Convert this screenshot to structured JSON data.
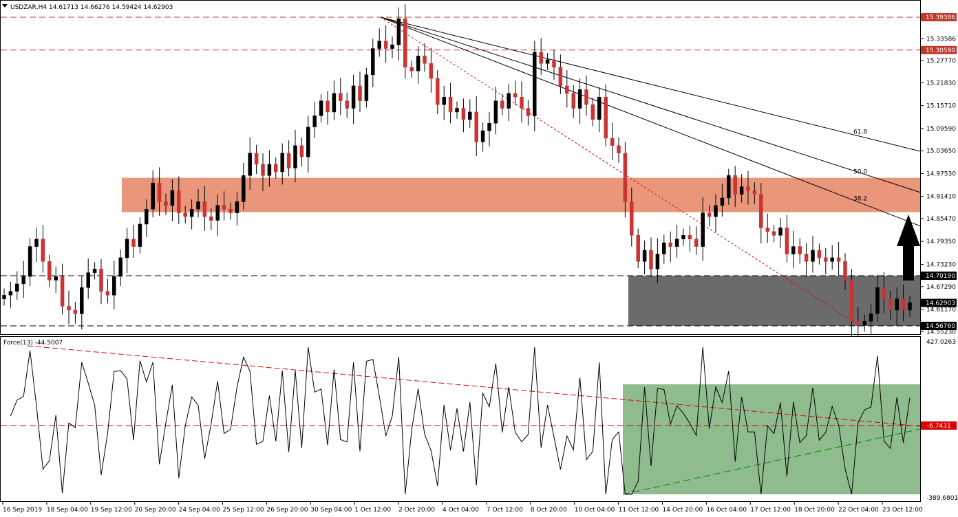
{
  "chart_title": "USDZAR,H4  14.61713 14.66276 14.59424 14.62903",
  "indicator_label": "Force(13) -44.5007",
  "colors": {
    "bull": "#000000",
    "bear": "#cc3333",
    "resistance_zone": "#e9967a",
    "support_zone": "#6b6b6b",
    "indicator_zone": "#8fbc8f",
    "red_line": "#dd0000",
    "green_line": "#008800"
  },
  "chart_data": [
    {
      "type": "candlestick",
      "symbol": "USDZAR",
      "timeframe": "H4",
      "ohlc_header": {
        "open": 14.61713,
        "high": 14.66276,
        "low": 14.59424,
        "close": 14.62903
      },
      "ylim": [
        14.5523,
        15.42
      ],
      "y_ticks": [
        15.33586,
        15.2777,
        15.2183,
        15.1571,
        15.0959,
        15.0365,
        14.9753,
        14.9141,
        14.8547,
        14.7935,
        14.7323,
        14.6729,
        14.6117,
        14.5523
      ],
      "price_tags": [
        {
          "value": 15.39386,
          "label": "15.39386",
          "style": "dashed-red",
          "color": "#c0392b"
        },
        {
          "value": 15.3059,
          "label": "15.30590",
          "style": "dashed-red",
          "color": "#c0392b"
        },
        {
          "value": 14.7019,
          "label": "14.70190",
          "style": "dashed-black",
          "color": "#000000"
        },
        {
          "value": 14.62903,
          "label": "14.62903",
          "style": "current",
          "color": "#000000"
        },
        {
          "value": 14.5676,
          "label": "14.56760",
          "style": "dashed-black",
          "color": "#000000"
        }
      ],
      "x_ticks": [
        "16 Sep 2019",
        "18 Sep 04:00",
        "19 Sep 12:00",
        "20 Sep 20:00",
        "24 Sep 04:00",
        "25 Sep 12:00",
        "26 Sep 20:00",
        "30 Sep 04:00",
        "1 Oct 12:00",
        "2 Oct 20:00",
        "4 Oct 04:00",
        "7 Oct 12:00",
        "8 Oct 20:00",
        "10 Oct 04:00",
        "11 Oct 12:00",
        "14 Oct 20:00",
        "16 Oct 04:00",
        "17 Oct 12:00",
        "18 Oct 20:00",
        "22 Oct 04:00",
        "23 Oct 12:00"
      ],
      "closes": [
        14.65,
        14.66,
        14.68,
        14.7,
        14.78,
        14.8,
        14.74,
        14.69,
        14.7,
        14.62,
        14.61,
        14.6,
        14.67,
        14.71,
        14.72,
        14.66,
        14.65,
        14.7,
        14.75,
        14.8,
        14.78,
        14.84,
        14.88,
        14.95,
        14.9,
        14.89,
        14.93,
        14.87,
        14.86,
        14.88,
        14.9,
        14.86,
        14.85,
        14.89,
        14.88,
        14.87,
        14.9,
        14.97,
        15.03,
        15.0,
        14.97,
        15.0,
        14.98,
        15.03,
        14.99,
        15.05,
        15.02,
        15.1,
        15.13,
        15.17,
        15.14,
        15.19,
        15.17,
        15.15,
        15.21,
        15.17,
        15.24,
        15.31,
        15.33,
        15.31,
        15.32,
        15.39,
        15.26,
        15.25,
        15.29,
        15.27,
        15.23,
        15.16,
        15.18,
        15.14,
        15.15,
        15.12,
        15.14,
        15.06,
        15.09,
        15.11,
        15.17,
        15.15,
        15.19,
        15.18,
        15.15,
        15.13,
        15.3,
        15.27,
        15.28,
        15.26,
        15.21,
        15.19,
        15.15,
        15.2,
        15.16,
        15.12,
        15.18,
        15.07,
        15.05,
        15.03,
        14.9,
        14.81,
        14.74,
        14.77,
        14.72,
        14.76,
        14.79,
        14.78,
        14.8,
        14.81,
        14.8,
        14.78,
        14.87,
        14.86,
        14.89,
        14.91,
        14.97,
        14.92,
        14.94,
        14.93,
        14.92,
        14.83,
        14.82,
        14.81,
        14.83,
        14.76,
        14.78,
        14.76,
        14.74,
        14.77,
        14.75,
        14.74,
        14.75,
        14.74,
        14.69,
        14.58,
        14.57,
        14.58,
        14.6,
        14.67,
        14.64,
        14.61,
        14.64,
        14.61,
        14.63
      ],
      "zones": [
        {
          "name": "resistance",
          "from": 14.872,
          "to": 14.964
        },
        {
          "name": "support",
          "from": 14.5676,
          "to": 14.7019
        }
      ],
      "fibonacci_fan": {
        "levels": [
          "38.2",
          "50.0",
          "61.8"
        ]
      }
    },
    {
      "type": "line",
      "indicator": "Force(13)",
      "value": -44.5007,
      "y_ticks": [
        427.0263,
        -389.6801
      ],
      "level_tag": {
        "value": -6.7431,
        "label": "-6.7431"
      },
      "ylim": [
        -389.6801,
        427.0263
      ]
    }
  ]
}
